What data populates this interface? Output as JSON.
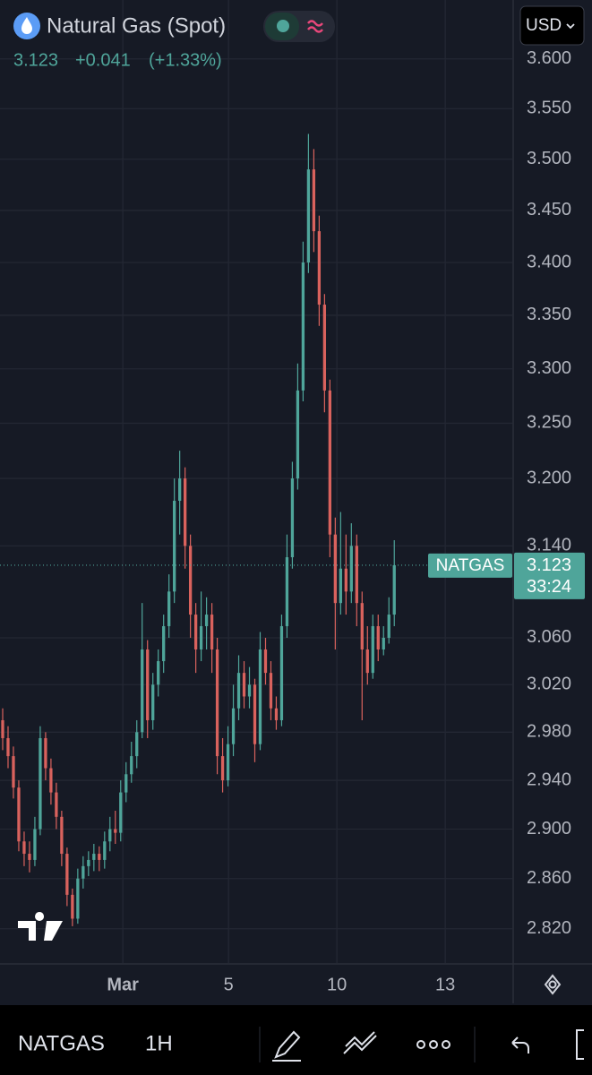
{
  "header": {
    "title": "Natural Gas (Spot)",
    "change": "+0.041",
    "change_pct": "(+1.33%)",
    "currency": "USD"
  },
  "toolbar": {
    "symbol": "NATGAS",
    "interval": "1H"
  },
  "chart_data": {
    "type": "candlestick",
    "log": true,
    "grid": true,
    "up_color": "#4fa59a",
    "down_color": "#d9625d",
    "x": [
      0,
      1,
      2,
      3,
      4,
      5,
      6,
      7,
      8,
      9,
      10,
      11,
      12,
      13,
      14,
      15,
      16,
      17,
      18,
      19,
      20,
      21,
      22,
      23,
      24,
      25,
      26,
      27,
      28,
      29,
      30,
      31,
      32,
      33,
      34,
      35,
      36,
      37,
      38,
      39,
      40,
      41,
      42,
      43,
      44,
      45,
      46,
      47,
      48,
      49,
      50,
      51,
      52,
      53,
      54,
      55,
      56,
      57,
      58,
      59,
      60,
      61,
      62,
      63,
      64,
      65,
      66,
      67,
      68,
      69,
      70,
      71,
      72,
      73
    ],
    "open": [
      2.99,
      2.975,
      2.96,
      2.934,
      2.89,
      2.88,
      2.875,
      2.9,
      2.975,
      2.95,
      2.93,
      2.91,
      2.88,
      2.847,
      2.828,
      2.86,
      2.87,
      2.875,
      2.88,
      2.875,
      2.89,
      2.9,
      2.897,
      2.93,
      2.945,
      2.96,
      2.98,
      3.05,
      2.99,
      3.02,
      3.04,
      3.07,
      3.1,
      3.18,
      3.2,
      3.14,
      3.08,
      3.05,
      3.07,
      3.08,
      3.05,
      2.96,
      2.94,
      2.97,
      3.0,
      3.03,
      3.01,
      3.02,
      2.97,
      3.05,
      3.03,
      3.0,
      2.99,
      3.07,
      3.13,
      3.2,
      3.28,
      3.4,
      3.49,
      3.43,
      3.36,
      3.28,
      3.15,
      3.09,
      3.12,
      3.1,
      3.14,
      3.09,
      3.05,
      3.03,
      3.07,
      3.05,
      3.06,
      3.08
    ],
    "high": [
      3.0,
      2.985,
      2.968,
      2.94,
      2.898,
      2.89,
      2.91,
      2.985,
      2.98,
      2.958,
      2.938,
      2.915,
      2.885,
      2.852,
      2.868,
      2.878,
      2.882,
      2.888,
      2.886,
      2.898,
      2.91,
      2.915,
      2.94,
      2.955,
      2.972,
      2.99,
      3.09,
      3.058,
      3.03,
      3.05,
      3.08,
      3.115,
      3.2,
      3.225,
      3.21,
      3.15,
      3.09,
      3.1,
      3.095,
      3.09,
      3.06,
      2.975,
      2.985,
      3.02,
      3.045,
      3.04,
      3.035,
      3.025,
      3.065,
      3.06,
      3.04,
      3.01,
      3.08,
      3.15,
      3.215,
      3.305,
      3.42,
      3.525,
      3.51,
      3.445,
      3.37,
      3.29,
      3.165,
      3.17,
      3.15,
      3.16,
      3.15,
      3.1,
      3.07,
      3.08,
      3.08,
      3.07,
      3.095,
      3.145
    ],
    "low": [
      2.965,
      2.95,
      2.925,
      2.882,
      2.87,
      2.865,
      2.87,
      2.895,
      2.94,
      2.92,
      2.9,
      2.87,
      2.838,
      2.822,
      2.824,
      2.852,
      2.862,
      2.866,
      2.866,
      2.868,
      2.882,
      2.888,
      2.89,
      2.922,
      2.938,
      2.95,
      2.975,
      2.975,
      2.982,
      3.01,
      3.03,
      3.06,
      3.09,
      3.15,
      3.12,
      3.06,
      3.03,
      3.04,
      3.05,
      3.03,
      2.945,
      2.93,
      2.935,
      2.96,
      2.99,
      3.0,
      3.0,
      2.955,
      2.965,
      3.02,
      2.99,
      2.982,
      2.985,
      3.06,
      3.12,
      3.19,
      3.27,
      3.39,
      3.41,
      3.34,
      3.26,
      3.13,
      3.05,
      3.08,
      3.08,
      3.09,
      3.07,
      2.99,
      3.02,
      3.025,
      3.04,
      3.045,
      3.055,
      3.07
    ],
    "close": [
      2.975,
      2.96,
      2.934,
      2.89,
      2.88,
      2.875,
      2.9,
      2.975,
      2.95,
      2.93,
      2.91,
      2.88,
      2.847,
      2.828,
      2.86,
      2.87,
      2.875,
      2.88,
      2.875,
      2.89,
      2.9,
      2.897,
      2.93,
      2.945,
      2.96,
      2.98,
      3.05,
      2.99,
      3.02,
      3.04,
      3.07,
      3.1,
      3.18,
      3.2,
      3.14,
      3.08,
      3.05,
      3.07,
      3.08,
      3.05,
      2.96,
      2.94,
      2.97,
      3.0,
      3.03,
      3.01,
      3.02,
      2.97,
      3.05,
      3.03,
      3.0,
      2.99,
      3.07,
      3.13,
      3.2,
      3.28,
      3.4,
      3.49,
      3.43,
      3.36,
      3.28,
      3.15,
      3.09,
      3.12,
      3.1,
      3.14,
      3.09,
      3.05,
      3.03,
      3.07,
      3.05,
      3.06,
      3.08,
      3.123
    ],
    "xlim": [
      -0.5,
      95
    ],
    "xticks": [
      {
        "value": 22.4,
        "label": "Mar"
      },
      {
        "value": 42.1,
        "label": "5"
      },
      {
        "value": 62.3,
        "label": "10"
      },
      {
        "value": 82.5,
        "label": "13"
      }
    ],
    "ylim": [
      2.793,
      3.66
    ],
    "yticks": [
      {
        "value": 3.6,
        "label": "3.600"
      },
      {
        "value": 3.55,
        "label": "3.550"
      },
      {
        "value": 3.5,
        "label": "3.500"
      },
      {
        "value": 3.45,
        "label": "3.450"
      },
      {
        "value": 3.4,
        "label": "3.400"
      },
      {
        "value": 3.35,
        "label": "3.350"
      },
      {
        "value": 3.3,
        "label": "3.300"
      },
      {
        "value": 3.25,
        "label": "3.250"
      },
      {
        "value": 3.2,
        "label": "3.200"
      },
      {
        "value": 3.14,
        "label": "3.140"
      },
      {
        "value": 3.06,
        "label": "3.060"
      },
      {
        "value": 3.02,
        "label": "3.020"
      },
      {
        "value": 2.98,
        "label": "2.980"
      },
      {
        "value": 2.94,
        "label": "2.940"
      },
      {
        "value": 2.9,
        "label": "2.900"
      },
      {
        "value": 2.86,
        "label": "2.860"
      },
      {
        "value": 2.82,
        "label": "2.820"
      }
    ],
    "last_price": 3.123,
    "last_label": "NATGAS",
    "countdown": "33:24"
  }
}
